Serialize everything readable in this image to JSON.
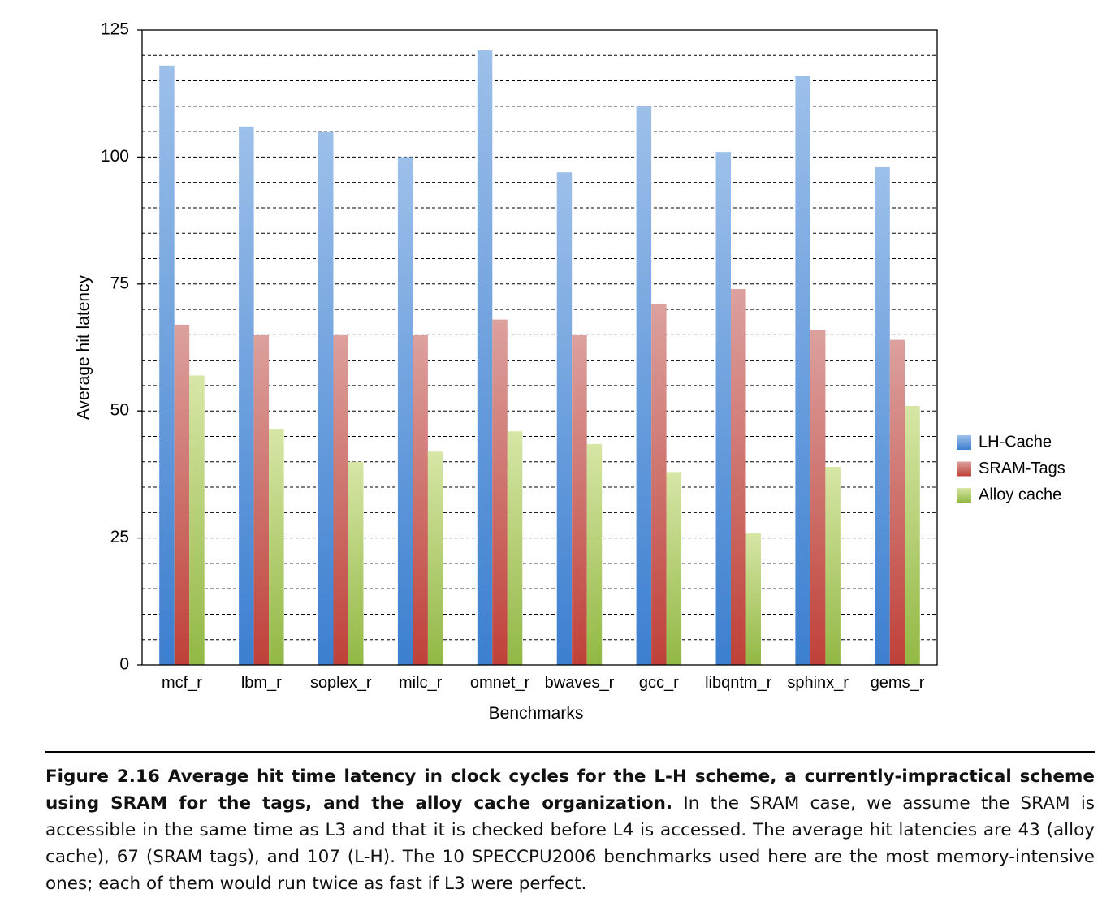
{
  "chart_data": {
    "type": "bar",
    "categories": [
      "mcf_r",
      "lbm_r",
      "soplex_r",
      "milc_r",
      "omnet_r",
      "bwaves_r",
      "gcc_r",
      "libqntm_r",
      "sphinx_r",
      "gems_r"
    ],
    "series": [
      {
        "name": "LH-Cache",
        "values": [
          118,
          106,
          105,
          100,
          121,
          97,
          110,
          101,
          116,
          98
        ]
      },
      {
        "name": "SRAM-Tags",
        "values": [
          67,
          65,
          65,
          65,
          68,
          65,
          71,
          74,
          66,
          64
        ]
      },
      {
        "name": "Alloy cache",
        "values": [
          57,
          46.5,
          40,
          42,
          46,
          43.5,
          38,
          26,
          39,
          51
        ]
      }
    ],
    "xlabel": "Benchmarks",
    "ylabel": "Average hit latency",
    "ylim": [
      0,
      125
    ],
    "yticks": [
      0,
      25,
      50,
      75,
      100,
      125
    ],
    "minor_grid_step": 5,
    "grid": true,
    "legend": "right",
    "colors": {
      "LH-Cache": [
        "#9dc0ea",
        "#3c7fd0"
      ],
      "SRAM-Tags": [
        "#dca19e",
        "#bf4139"
      ],
      "Alloy cache": [
        "#d7e6a6",
        "#92b844"
      ]
    }
  },
  "caption": {
    "lead": "Figure 2.16  Average hit time latency in clock cycles for the L-H scheme, a currently-impractical scheme using SRAM for the tags, and the alloy cache organization.",
    "body": " In the SRAM case, we assume the SRAM is accessible in the same time as L3 and that it is checked before L4 is accessed. The average hit latencies are 43 (alloy cache), 67 (SRAM tags), and 107 (L-H). The 10 SPECCPU2006 benchmarks used here are the most memory-intensive ones; each of them would run twice as fast if L3 were perfect."
  }
}
